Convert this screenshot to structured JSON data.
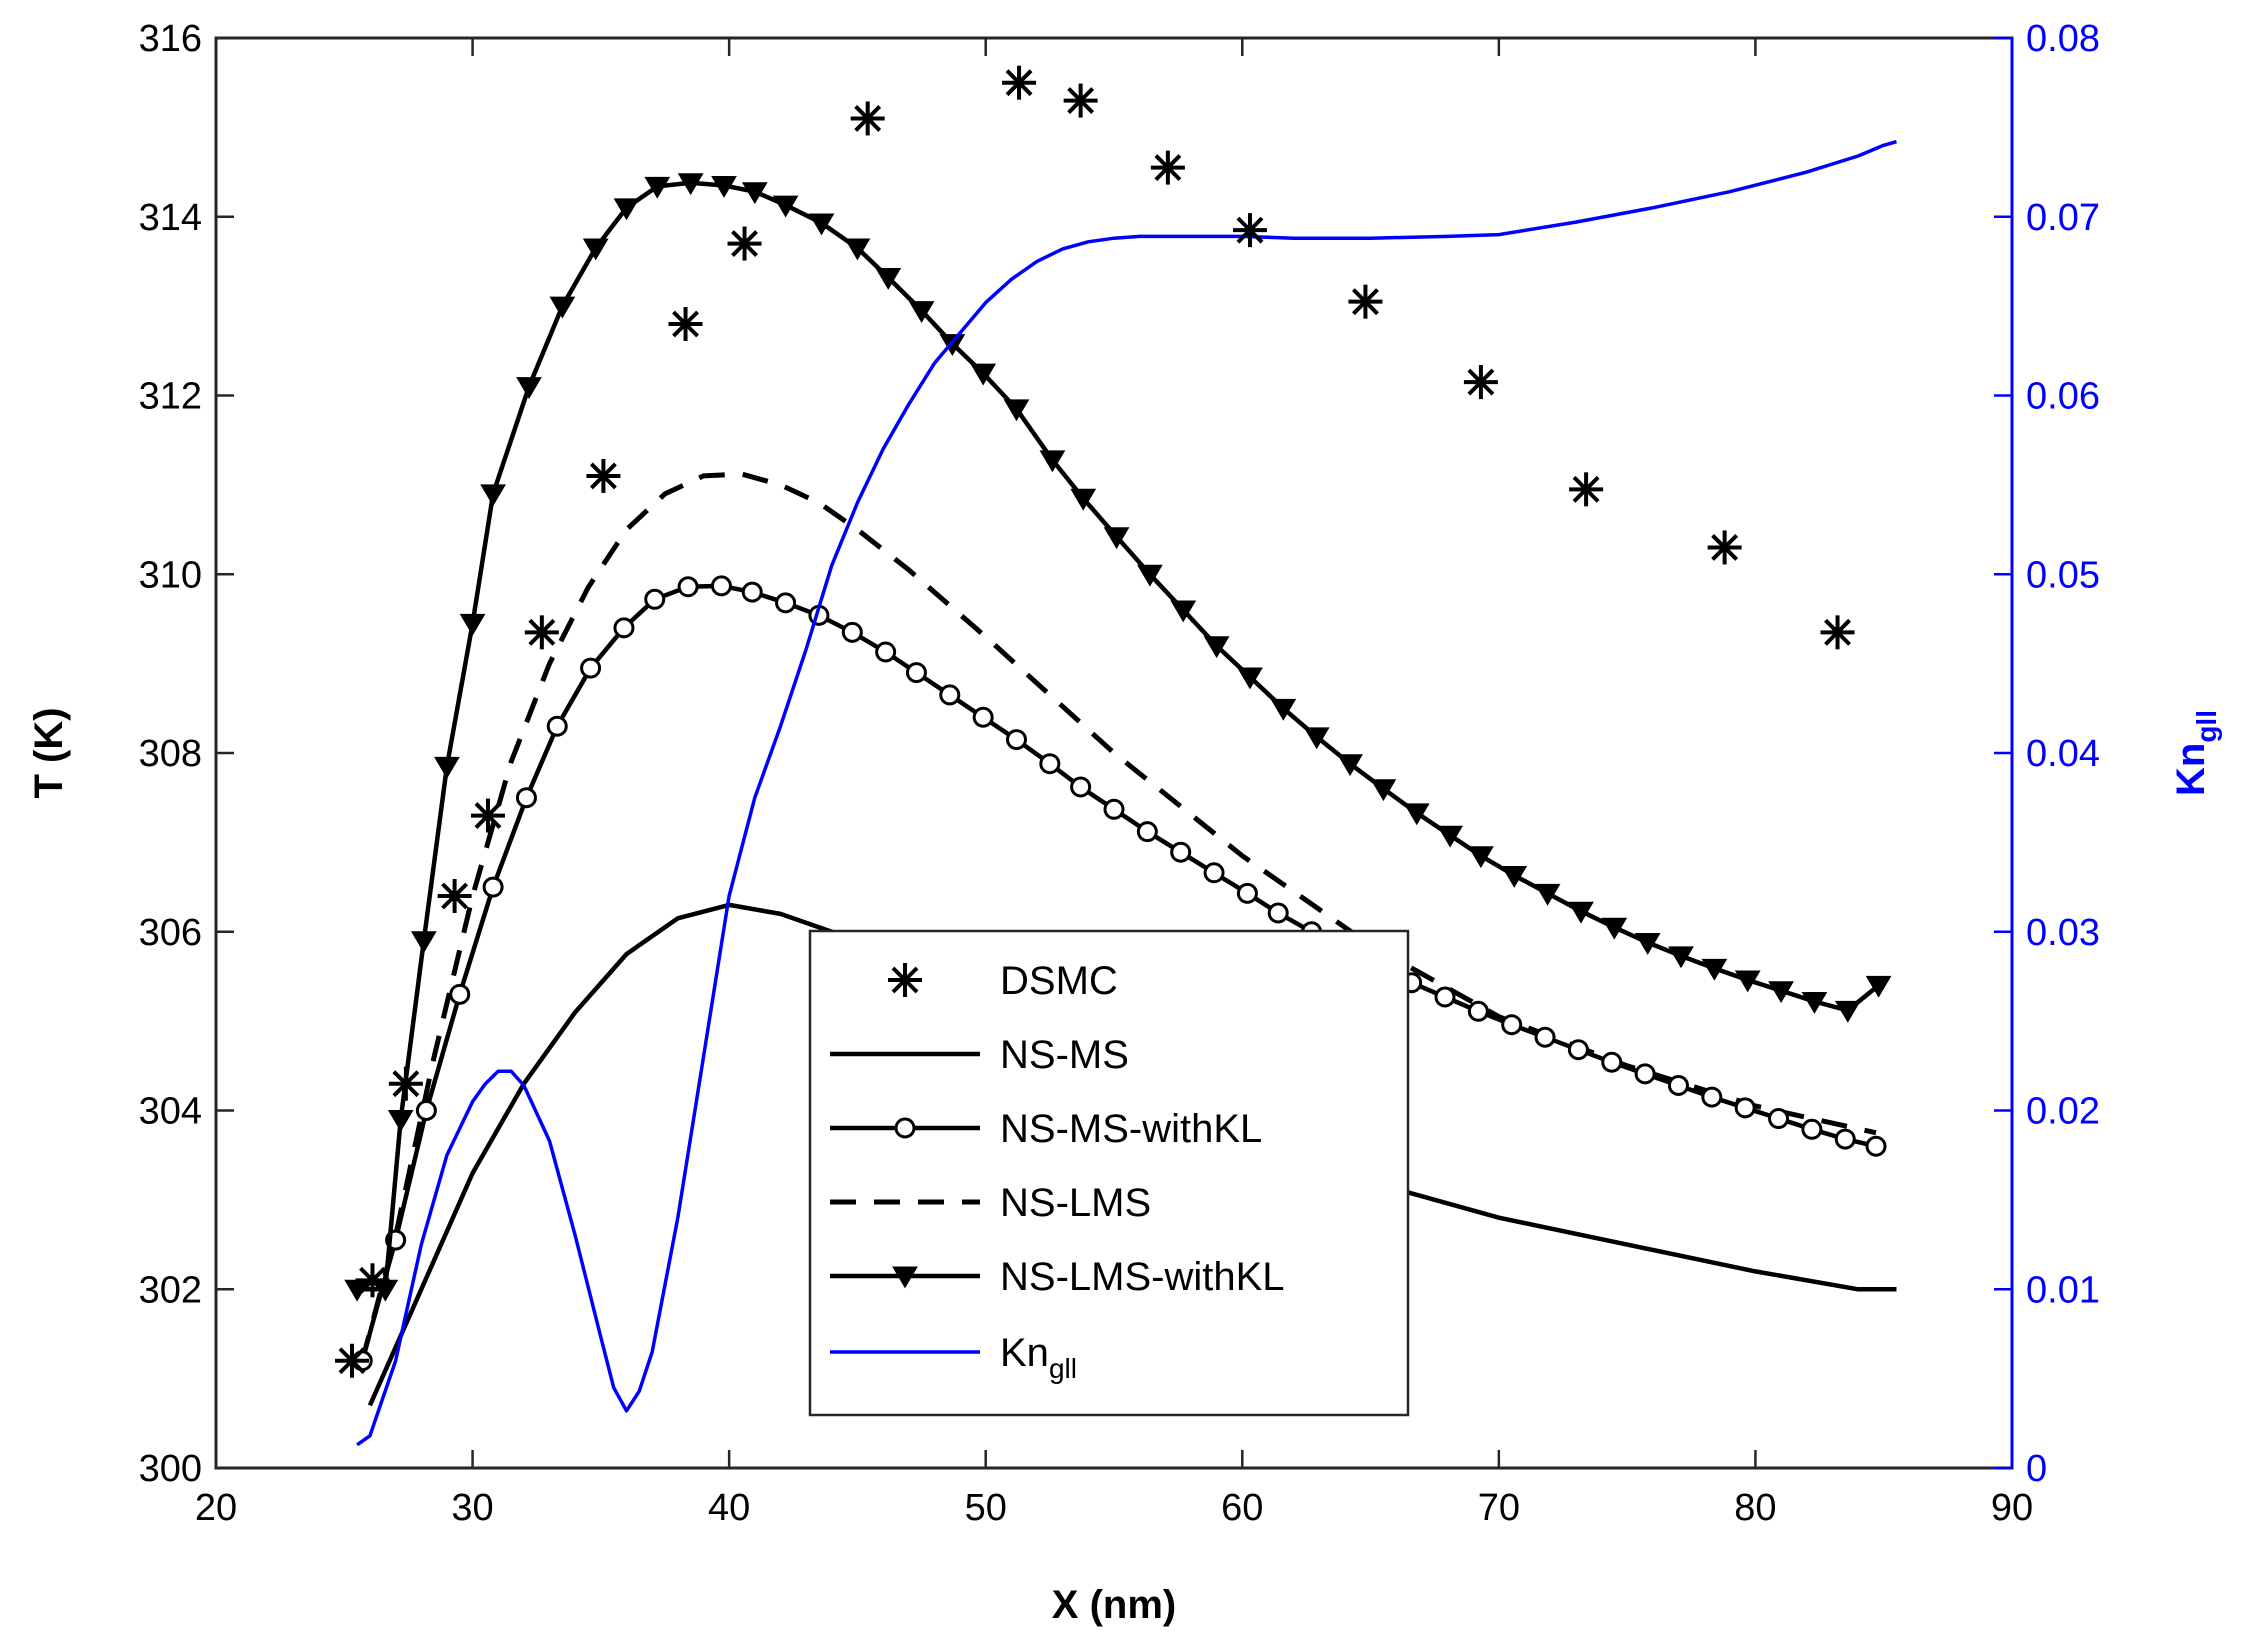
{
  "chart_data": {
    "type": "line",
    "xlabel": "X (nm)",
    "ylabel": "T (K)",
    "y2label_main": "Kn",
    "y2label_sub": "gll",
    "xlim": [
      20,
      90
    ],
    "ylim": [
      300,
      316
    ],
    "y2lim": [
      0,
      0.08
    ],
    "xticks": [
      "20",
      "30",
      "40",
      "50",
      "60",
      "70",
      "80",
      "90"
    ],
    "yticks": [
      "300",
      "302",
      "304",
      "306",
      "308",
      "310",
      "312",
      "314",
      "316"
    ],
    "y2ticks": [
      "0",
      "0.01",
      "0.02",
      "0.03",
      "0.04",
      "0.05",
      "0.06",
      "0.07",
      "0.08"
    ],
    "legend_position": "center",
    "colors": {
      "main": "#000000",
      "kn": "#0000ff"
    },
    "series": [
      {
        "name": "DSMC",
        "style": "asterisk",
        "x": [
          25.3,
          26.1,
          27.4,
          29.3,
          30.6,
          32.7,
          35.1,
          38.3,
          40.6,
          45.4,
          51.3,
          53.7,
          57.1,
          60.3,
          64.8,
          69.3,
          73.4,
          78.8,
          83.2
        ],
        "y": [
          301.2,
          302.1,
          304.3,
          306.4,
          307.3,
          309.35,
          311.1,
          312.8,
          313.7,
          315.1,
          315.5,
          315.3,
          314.55,
          313.85,
          313.05,
          312.15,
          310.95,
          310.3,
          309.35
        ]
      },
      {
        "name": "NS-MS",
        "style": "solid",
        "x": [
          26,
          28,
          30,
          32,
          34,
          36,
          38,
          40,
          42,
          44,
          46,
          50,
          55,
          60,
          65,
          70,
          75,
          80,
          84,
          85.5
        ],
        "y": [
          300.7,
          302.0,
          303.3,
          304.3,
          305.1,
          305.75,
          306.15,
          306.3,
          306.2,
          306.0,
          305.75,
          305.1,
          304.35,
          303.75,
          303.2,
          302.8,
          302.5,
          302.2,
          302.0,
          302.0
        ]
      },
      {
        "name": "NS-MS-withKL",
        "style": "circle",
        "x": [
          25.7,
          27,
          28.2,
          29.5,
          30.8,
          32.1,
          33.3,
          34.6,
          35.9,
          37.1,
          38.4,
          39.7,
          40.9,
          42.2,
          43.5,
          44.8,
          46.1,
          47.3,
          48.6,
          49.9,
          51.2,
          52.5,
          53.7,
          55,
          56.3,
          57.6,
          58.9,
          60.2,
          61.4,
          62.7,
          64,
          65.3,
          66.6,
          67.9,
          69.2,
          70.5,
          71.8,
          73.1,
          74.4,
          75.7,
          77,
          78.3,
          79.6,
          80.9,
          82.2,
          83.5,
          84.7
        ],
        "y": [
          301.2,
          302.55,
          304.0,
          305.3,
          306.5,
          307.5,
          308.3,
          308.95,
          309.4,
          309.72,
          309.86,
          309.87,
          309.8,
          309.68,
          309.54,
          309.35,
          309.13,
          308.9,
          308.65,
          308.4,
          308.15,
          307.88,
          307.62,
          307.37,
          307.12,
          306.89,
          306.66,
          306.43,
          306.21,
          306.0,
          305.8,
          305.6,
          305.43,
          305.27,
          305.11,
          304.96,
          304.82,
          304.68,
          304.54,
          304.41,
          304.28,
          304.15,
          304.03,
          303.91,
          303.79,
          303.68,
          303.6
        ]
      },
      {
        "name": "NS-LMS",
        "style": "dashed",
        "x": [
          25.7,
          27,
          28.5,
          30,
          31.5,
          33,
          34.5,
          36,
          37.5,
          39,
          40.5,
          42,
          43.5,
          45,
          47,
          50,
          55,
          60,
          65,
          70,
          75,
          80,
          84.7
        ],
        "y": [
          301.2,
          302.6,
          304.6,
          306.4,
          307.9,
          309.0,
          309.85,
          310.5,
          310.9,
          311.1,
          311.12,
          311.0,
          310.8,
          310.5,
          310.05,
          309.3,
          308.0,
          306.85,
          305.85,
          305.05,
          304.5,
          304.05,
          303.75
        ]
      },
      {
        "name": "NS-LMS-withKL",
        "style": "triangle",
        "x": [
          25.5,
          26.6,
          27.2,
          28.1,
          29,
          30,
          30.8,
          32.2,
          33.5,
          34.8,
          36,
          37.2,
          38.5,
          39.8,
          41,
          42.2,
          43.6,
          45,
          46.2,
          47.5,
          48.7,
          49.9,
          51.2,
          52.6,
          53.8,
          55.1,
          56.4,
          57.7,
          59,
          60.3,
          61.6,
          62.9,
          64.2,
          65.5,
          66.8,
          68.1,
          69.3,
          70.6,
          71.9,
          73.2,
          74.5,
          75.8,
          77.1,
          78.4,
          79.7,
          81,
          82.3,
          83.6,
          84.8
        ],
        "y": [
          302.0,
          302.0,
          303.9,
          305.9,
          307.85,
          309.45,
          310.9,
          312.1,
          313.0,
          313.65,
          314.1,
          314.34,
          314.38,
          314.35,
          314.28,
          314.13,
          313.93,
          313.65,
          313.32,
          312.95,
          312.58,
          312.25,
          311.85,
          311.28,
          310.85,
          310.42,
          310.0,
          309.6,
          309.2,
          308.85,
          308.5,
          308.18,
          307.88,
          307.6,
          307.33,
          307.08,
          306.85,
          306.63,
          306.43,
          306.23,
          306.05,
          305.88,
          305.73,
          305.59,
          305.46,
          305.34,
          305.22,
          305.12,
          305.4
        ]
      },
      {
        "name": "Kn_gll",
        "style": "solid-blue",
        "axis": "right",
        "x": [
          25.5,
          26,
          27,
          28,
          29,
          30,
          30.5,
          31,
          31.5,
          32,
          33,
          34,
          35,
          35.5,
          36,
          36.5,
          37,
          38,
          39,
          40,
          41,
          42,
          43,
          44,
          45,
          46,
          47,
          48,
          49,
          50,
          51,
          52,
          53,
          54,
          55,
          56,
          57,
          58,
          60,
          62,
          65,
          68,
          70,
          73,
          76,
          79,
          82,
          84,
          85,
          85.5
        ],
        "y": [
          0.0013,
          0.0018,
          0.006,
          0.0125,
          0.0175,
          0.0205,
          0.0215,
          0.0222,
          0.0222,
          0.0214,
          0.0183,
          0.013,
          0.0073,
          0.0045,
          0.0032,
          0.0043,
          0.0065,
          0.014,
          0.023,
          0.032,
          0.0375,
          0.0415,
          0.0458,
          0.0505,
          0.054,
          0.057,
          0.0595,
          0.0618,
          0.0635,
          0.0652,
          0.0665,
          0.0675,
          0.0682,
          0.0686,
          0.0688,
          0.0689,
          0.0689,
          0.0689,
          0.0689,
          0.0688,
          0.0688,
          0.0689,
          0.069,
          0.0697,
          0.0705,
          0.0714,
          0.0725,
          0.0734,
          0.074,
          0.0742
        ]
      }
    ]
  }
}
